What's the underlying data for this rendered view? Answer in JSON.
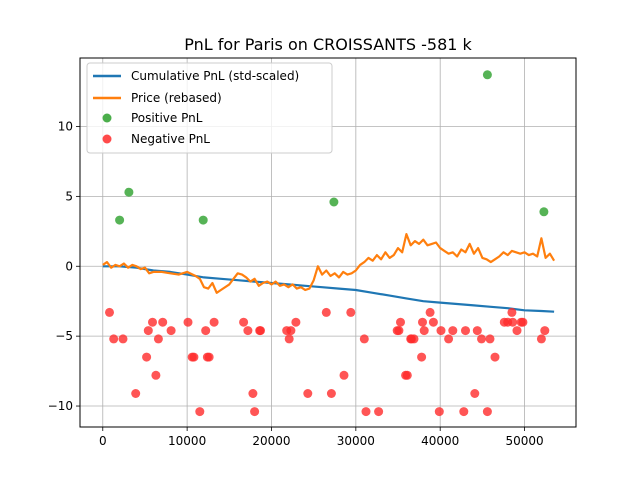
{
  "chart_data": {
    "type": "line",
    "title": "PnL for Paris on CROISSANTS -581 k",
    "xlabel": "",
    "ylabel": "",
    "xlim": [
      -2700,
      56100
    ],
    "ylim": [
      -11.5,
      14.9
    ],
    "grid": true,
    "legend_position": "top-left",
    "x_ticks": [
      {
        "value": 0,
        "label": "0"
      },
      {
        "value": 10000,
        "label": "10000"
      },
      {
        "value": 20000,
        "label": "20000"
      },
      {
        "value": 30000,
        "label": "30000"
      },
      {
        "value": 40000,
        "label": "40000"
      },
      {
        "value": 50000,
        "label": "50000"
      }
    ],
    "y_ticks": [
      {
        "value": -10,
        "label": "−10"
      },
      {
        "value": -5,
        "label": "−5"
      },
      {
        "value": 0,
        "label": "0"
      },
      {
        "value": 5,
        "label": "5"
      },
      {
        "value": 10,
        "label": "10"
      }
    ],
    "series": [
      {
        "name": "Cumulative PnL (std-scaled)",
        "kind": "line",
        "color": "#1f77b4",
        "x": [
          0,
          2000,
          4000,
          6000,
          8000,
          10000,
          12000,
          14000,
          16000,
          18000,
          20000,
          22000,
          24000,
          26000,
          28000,
          30000,
          32000,
          34000,
          36000,
          38000,
          40000,
          42000,
          44000,
          46000,
          48000,
          50000,
          52000,
          53500
        ],
        "y": [
          0.0,
          0.0,
          -0.1,
          -0.3,
          -0.4,
          -0.6,
          -0.8,
          -0.9,
          -1.0,
          -1.1,
          -1.2,
          -1.3,
          -1.4,
          -1.5,
          -1.6,
          -1.7,
          -1.9,
          -2.1,
          -2.3,
          -2.5,
          -2.6,
          -2.7,
          -2.8,
          -2.9,
          -3.0,
          -3.15,
          -3.2,
          -3.25
        ]
      },
      {
        "name": "Price (rebased)",
        "kind": "line",
        "color": "#ff7f0e",
        "x": [
          0,
          500,
          1000,
          1500,
          2000,
          2500,
          3000,
          3500,
          4000,
          4500,
          5000,
          5500,
          6000,
          7000,
          8000,
          9000,
          10000,
          11000,
          11500,
          12000,
          12500,
          13000,
          13500,
          14000,
          15000,
          15500,
          16000,
          16500,
          17000,
          17500,
          18000,
          18500,
          19000,
          19500,
          20000,
          20500,
          21000,
          21500,
          22000,
          22500,
          23000,
          23500,
          24000,
          24500,
          25000,
          25500,
          26000,
          26500,
          27000,
          27500,
          28000,
          28500,
          29000,
          29500,
          30000,
          30500,
          31000,
          31500,
          32000,
          32500,
          33000,
          33500,
          34000,
          34500,
          35000,
          35500,
          36000,
          36500,
          37000,
          37500,
          38000,
          38500,
          39000,
          39500,
          40000,
          40500,
          41000,
          41500,
          42000,
          42500,
          43000,
          43500,
          44000,
          44500,
          45000,
          45500,
          46000,
          46500,
          47000,
          47500,
          48000,
          48500,
          49000,
          49500,
          50000,
          50500,
          51000,
          51500,
          52000,
          52500,
          53000,
          53500
        ],
        "y": [
          0.1,
          0.3,
          -0.1,
          0.1,
          0.0,
          0.2,
          -0.1,
          0.1,
          0.0,
          -0.2,
          -0.1,
          -0.5,
          -0.4,
          -0.4,
          -0.5,
          -0.6,
          -0.4,
          -0.7,
          -0.9,
          -1.5,
          -1.6,
          -1.2,
          -1.9,
          -1.7,
          -1.3,
          -0.9,
          -0.5,
          -0.6,
          -0.8,
          -1.1,
          -0.9,
          -1.4,
          -1.2,
          -1.1,
          -1.3,
          -1.1,
          -1.4,
          -1.3,
          -1.5,
          -1.3,
          -1.6,
          -1.5,
          -1.7,
          -1.6,
          -1.0,
          0.0,
          -0.6,
          -0.3,
          -0.7,
          -0.5,
          -0.8,
          -0.4,
          -0.6,
          -0.5,
          -0.3,
          0.1,
          0.3,
          0.6,
          0.4,
          0.8,
          0.5,
          1.0,
          0.6,
          0.8,
          1.3,
          1.0,
          2.3,
          1.5,
          1.8,
          1.6,
          1.9,
          1.5,
          1.6,
          1.7,
          1.3,
          1.1,
          0.9,
          1.0,
          0.7,
          1.2,
          1.0,
          1.6,
          0.9,
          1.3,
          0.6,
          0.5,
          0.3,
          0.5,
          0.7,
          1.0,
          0.8,
          1.1,
          1.0,
          0.9,
          1.0,
          0.8,
          0.9,
          0.7,
          2.0,
          0.6,
          0.9,
          0.4
        ]
      },
      {
        "name": "Positive PnL",
        "kind": "scatter",
        "color": "#2ca02c",
        "x": [
          2000,
          3100,
          11900,
          27400,
          45600,
          52300
        ],
        "y": [
          3.3,
          5.3,
          3.3,
          4.6,
          13.7,
          3.9
        ]
      },
      {
        "name": "Negative PnL",
        "kind": "scatter",
        "color": "#ff2a2a",
        "x": [
          800,
          1300,
          2400,
          3900,
          5200,
          5400,
          5900,
          6300,
          6600,
          7100,
          8100,
          10100,
          10600,
          10800,
          11500,
          12200,
          12400,
          12600,
          13200,
          16700,
          17200,
          17800,
          18000,
          18600,
          18700,
          21800,
          22100,
          22300,
          22900,
          24300,
          26500,
          27100,
          28600,
          29400,
          31000,
          31200,
          32700,
          34900,
          35100,
          35300,
          35900,
          36100,
          36500,
          36600,
          36900,
          37800,
          37900,
          38100,
          38800,
          39200,
          39900,
          40100,
          41000,
          41500,
          42800,
          43000,
          44100,
          44400,
          44900,
          45600,
          45900,
          46500,
          47600,
          48000,
          48500,
          48600,
          49100,
          49600,
          49800,
          52000,
          52400
        ],
        "y": [
          -3.3,
          -5.2,
          -5.2,
          -9.1,
          -6.5,
          -4.6,
          -4.0,
          -7.8,
          -5.2,
          -4.0,
          -4.6,
          -4.0,
          -6.5,
          -6.5,
          -10.4,
          -4.6,
          -6.5,
          -6.5,
          -4.0,
          -4.0,
          -4.6,
          -9.1,
          -10.4,
          -4.6,
          -4.6,
          -4.6,
          -5.2,
          -4.6,
          -4.0,
          -9.1,
          -3.3,
          -9.1,
          -7.8,
          -3.3,
          -5.2,
          -10.4,
          -10.4,
          -4.6,
          -4.6,
          -4.0,
          -7.8,
          -7.8,
          -5.2,
          -5.2,
          -5.2,
          -6.5,
          -4.0,
          -4.6,
          -3.3,
          -4.0,
          -10.4,
          -4.6,
          -5.2,
          -4.6,
          -10.4,
          -4.6,
          -9.1,
          -4.6,
          -5.2,
          -10.4,
          -5.2,
          -6.5,
          -4.0,
          -4.0,
          -3.3,
          -4.0,
          -4.6,
          -4.0,
          -4.0,
          -5.2,
          -4.6
        ]
      }
    ]
  }
}
